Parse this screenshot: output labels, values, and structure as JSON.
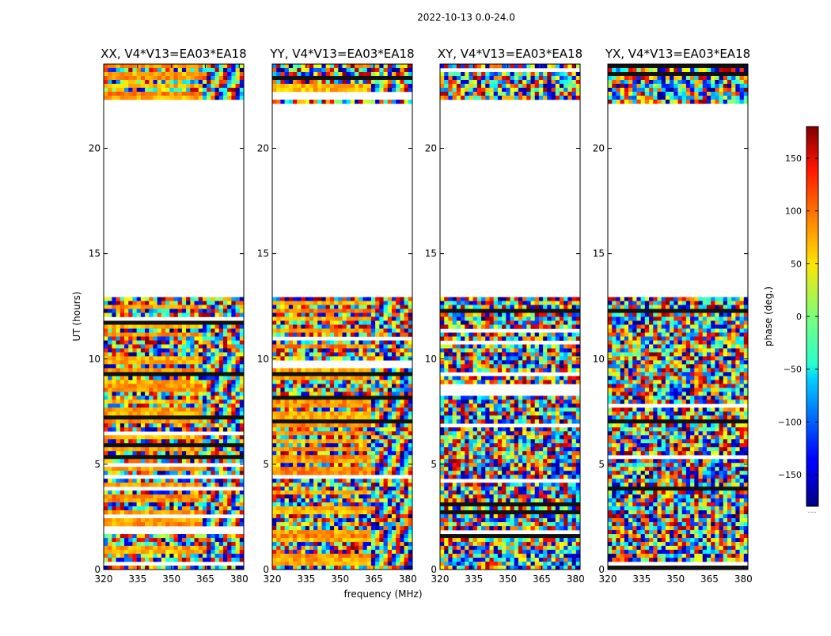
{
  "figure": {
    "suptitle": "2022-10-13 0.0-24.0",
    "xlabel": "frequency (MHz)",
    "ylabel": "UT (hours)",
    "colorbar_label": "phase (deg.)",
    "colorbar_footnote": "......"
  },
  "chart_data": [
    {
      "type": "heatmap",
      "title": "XX, V4*V13=EA03*EA18",
      "xlabel": "frequency (MHz)",
      "ylabel": "UT (hours)",
      "xlim": [
        320,
        382
      ],
      "ylim": [
        0,
        24
      ],
      "xticks": [
        320,
        335,
        350,
        365,
        380
      ],
      "yticks": [
        0,
        5,
        10,
        15,
        20
      ],
      "grid": false,
      "value_range": [
        -180,
        180
      ],
      "colormap": "jet",
      "pattern": "coherent",
      "data_gaps_hours": [
        [
          13.0,
          22.2
        ]
      ]
    },
    {
      "type": "heatmap",
      "title": "YY, V4*V13=EA03*EA18",
      "xlabel": "frequency (MHz)",
      "ylabel": "UT (hours)",
      "xlim": [
        320,
        382
      ],
      "ylim": [
        0,
        24
      ],
      "xticks": [
        320,
        335,
        350,
        365,
        380
      ],
      "yticks": [
        0,
        5,
        10,
        15,
        20
      ],
      "grid": false,
      "value_range": [
        -180,
        180
      ],
      "colormap": "jet",
      "pattern": "coherent",
      "data_gaps_hours": [
        [
          13.0,
          22.2
        ]
      ]
    },
    {
      "type": "heatmap",
      "title": "XY, V4*V13=EA03*EA18",
      "xlabel": "frequency (MHz)",
      "ylabel": "UT (hours)",
      "xlim": [
        320,
        382
      ],
      "ylim": [
        0,
        24
      ],
      "xticks": [
        320,
        335,
        350,
        365,
        380
      ],
      "yticks": [
        0,
        5,
        10,
        15,
        20
      ],
      "grid": false,
      "value_range": [
        -180,
        180
      ],
      "colormap": "jet",
      "pattern": "noise",
      "data_gaps_hours": [
        [
          13.0,
          22.2
        ]
      ]
    },
    {
      "type": "heatmap",
      "title": "YX, V4*V13=EA03*EA18",
      "xlabel": "frequency (MHz)",
      "ylabel": "UT (hours)",
      "xlim": [
        320,
        382
      ],
      "ylim": [
        0,
        24
      ],
      "xticks": [
        320,
        335,
        350,
        365,
        380
      ],
      "yticks": [
        0,
        5,
        10,
        15,
        20
      ],
      "grid": false,
      "value_range": [
        -180,
        180
      ],
      "colormap": "jet",
      "pattern": "noise",
      "data_gaps_hours": [
        [
          13.0,
          22.2
        ]
      ]
    }
  ],
  "colorbar": {
    "range": [
      -180,
      180
    ],
    "ticks": [
      150,
      100,
      50,
      0,
      -50,
      -100,
      -150
    ],
    "tick_labels": [
      "150",
      "100",
      "50",
      "0",
      "−50",
      "−100",
      "−150"
    ],
    "colormap": "jet"
  },
  "colors": {
    "axes": "#000000",
    "background": "#ffffff"
  }
}
